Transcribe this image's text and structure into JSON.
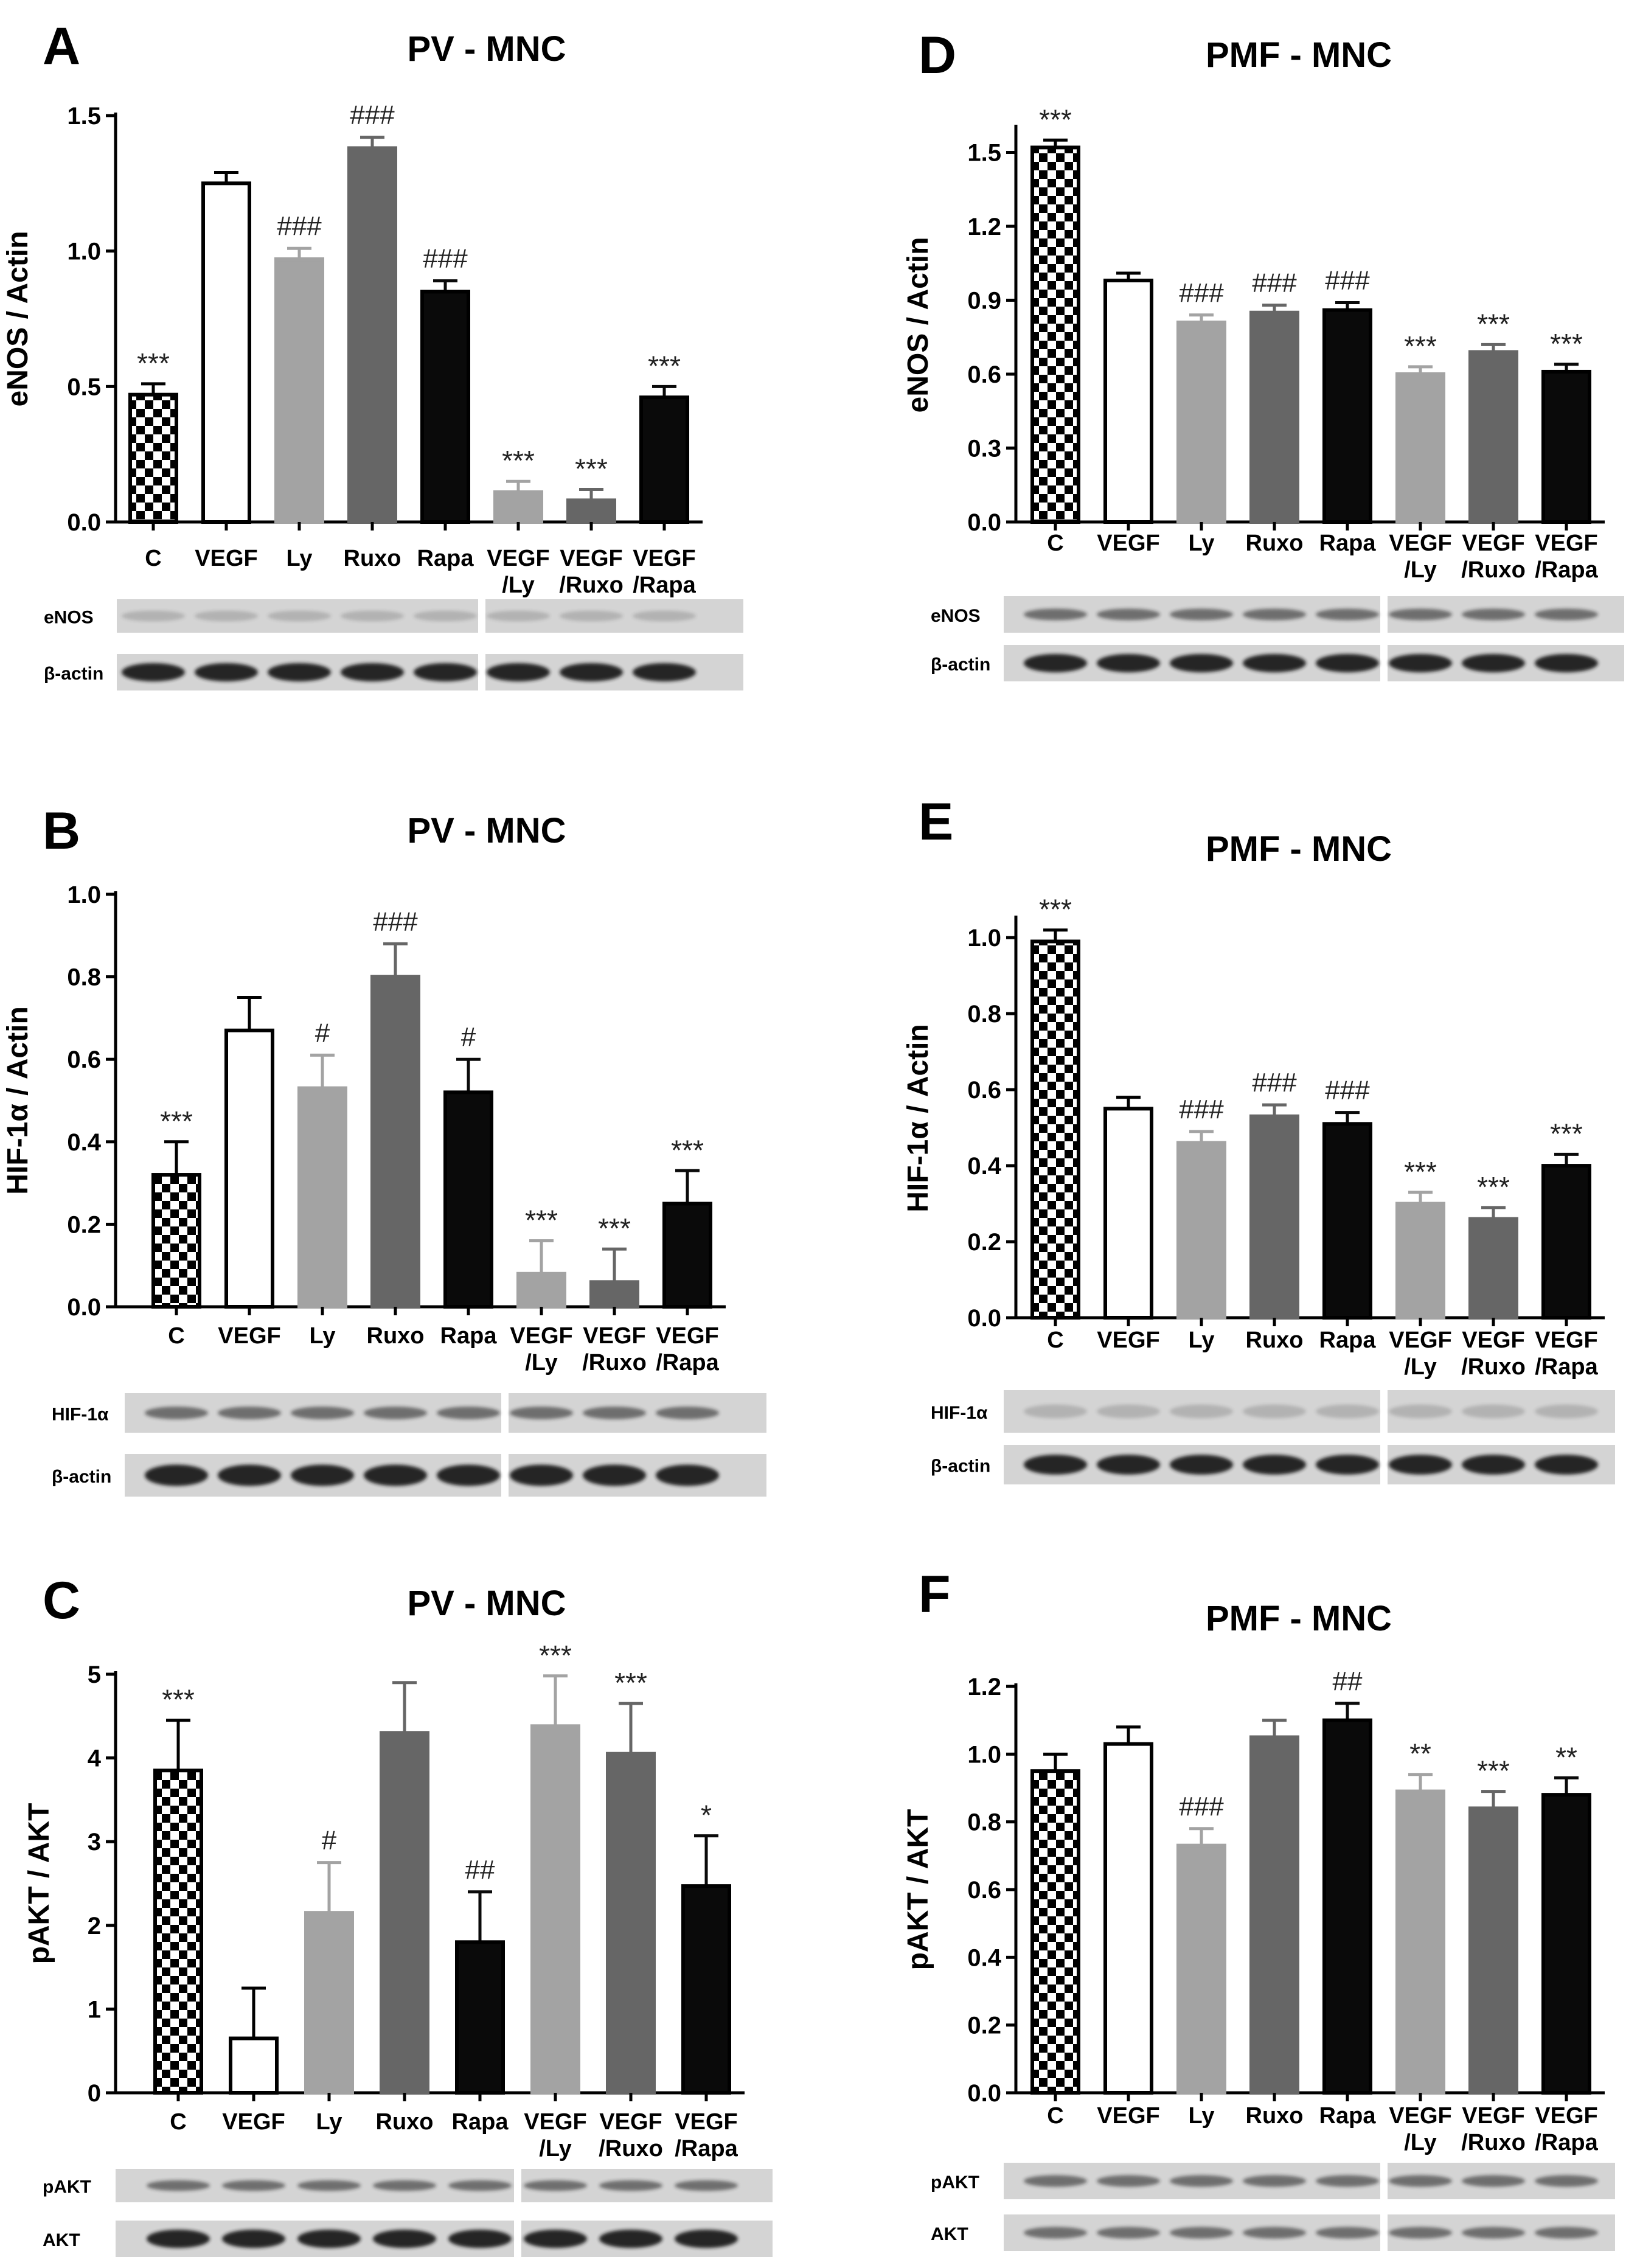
{
  "figure": {
    "categories": [
      "C",
      "VEGF",
      "Ly",
      "Ruxo",
      "Rapa",
      "VEGF|/Ly",
      "VEGF|/Ruxo",
      "VEGF|/Rapa"
    ],
    "bar_styles": [
      "checker",
      "white",
      "lightgray",
      "darkgray",
      "black",
      "lightgray",
      "darkgray",
      "black"
    ],
    "colors": {
      "axis": "#000000",
      "lightgray": "#a3a3a3",
      "darkgray": "#666666",
      "black": "#0a0a0a",
      "white": "#ffffff",
      "blot_bg": "#d4d4d4",
      "band": "#1a1a1a"
    }
  },
  "chart_data": [
    {
      "type": "bar",
      "panel_letter": "A",
      "title": "PV - MNC",
      "ylabel": "eNOS / Actin",
      "ylim": [
        0,
        1.5
      ],
      "yticks": [
        "0.0",
        "0.5",
        "1.0",
        "1.5"
      ],
      "values": [
        0.47,
        1.25,
        0.97,
        1.38,
        0.85,
        0.11,
        0.08,
        0.46
      ],
      "errors": [
        0.04,
        0.04,
        0.04,
        0.04,
        0.04,
        0.04,
        0.04,
        0.04
      ],
      "annotations": [
        "***",
        "",
        "###",
        "###",
        "###",
        "***",
        "***",
        "***"
      ],
      "blots": [
        {
          "label": "eNOS",
          "band": "faint"
        },
        {
          "label": "β-actin",
          "band": "strong"
        }
      ]
    },
    {
      "type": "bar",
      "panel_letter": "B",
      "title": "PV - MNC",
      "ylabel": "HIF-1α / Actin",
      "ylim": [
        0,
        1.0
      ],
      "yticks": [
        "0.0",
        "0.2",
        "0.4",
        "0.6",
        "0.8",
        "1.0"
      ],
      "values": [
        0.32,
        0.67,
        0.53,
        0.8,
        0.52,
        0.08,
        0.06,
        0.25
      ],
      "errors": [
        0.08,
        0.08,
        0.08,
        0.08,
        0.08,
        0.08,
        0.08,
        0.08
      ],
      "annotations": [
        "***",
        "",
        "#",
        "###",
        "#",
        "***",
        "***",
        "***"
      ],
      "blots": [
        {
          "label": "HIF-1α",
          "band": "medium"
        },
        {
          "label": "β-actin",
          "band": "strong"
        }
      ]
    },
    {
      "type": "bar",
      "panel_letter": "C",
      "title": "PV - MNC",
      "ylabel": "pAKT / AKT",
      "ylim": [
        0,
        5
      ],
      "yticks": [
        "0",
        "1",
        "2",
        "3",
        "4",
        "5"
      ],
      "values": [
        3.85,
        0.65,
        2.15,
        4.3,
        1.8,
        4.38,
        4.05,
        2.47
      ],
      "errors": [
        0.6,
        0.6,
        0.6,
        0.6,
        0.6,
        0.6,
        0.6,
        0.6
      ],
      "annotations": [
        "***",
        "",
        "#",
        "",
        "##",
        "***",
        "***",
        "*"
      ],
      "blots": [
        {
          "label": "pAKT",
          "band": "medium"
        },
        {
          "label": "AKT",
          "band": "strong"
        }
      ]
    },
    {
      "type": "bar",
      "panel_letter": "D",
      "title": "PMF - MNC",
      "ylabel": "eNOS / Actin",
      "ylim": [
        0,
        1.6
      ],
      "yticks": [
        "0.0",
        "0.3",
        "0.6",
        "0.9",
        "1.2",
        "1.5"
      ],
      "values": [
        1.52,
        0.98,
        0.81,
        0.85,
        0.86,
        0.6,
        0.69,
        0.61
      ],
      "errors": [
        0.03,
        0.03,
        0.03,
        0.03,
        0.03,
        0.03,
        0.03,
        0.03
      ],
      "annotations": [
        "***",
        "",
        "###",
        "###",
        "###",
        "***",
        "***",
        "***"
      ],
      "blots": [
        {
          "label": "eNOS",
          "band": "medium"
        },
        {
          "label": "β-actin",
          "band": "strong"
        }
      ]
    },
    {
      "type": "bar",
      "panel_letter": "E",
      "title": "PMF - MNC",
      "ylabel": "HIF-1α / Actin",
      "ylim": [
        0,
        1.05
      ],
      "yticks": [
        "0.0",
        "0.2",
        "0.4",
        "0.6",
        "0.8",
        "1.0"
      ],
      "values": [
        0.99,
        0.55,
        0.46,
        0.53,
        0.51,
        0.3,
        0.26,
        0.4
      ],
      "errors": [
        0.03,
        0.03,
        0.03,
        0.03,
        0.03,
        0.03,
        0.03,
        0.03
      ],
      "annotations": [
        "***",
        "",
        "###",
        "###",
        "###",
        "***",
        "***",
        "***"
      ],
      "blots": [
        {
          "label": "HIF-1α",
          "band": "faint"
        },
        {
          "label": "β-actin",
          "band": "strong"
        }
      ]
    },
    {
      "type": "bar",
      "panel_letter": "F",
      "title": "PMF - MNC",
      "ylabel": "pAKT / AKT",
      "ylim": [
        0,
        1.2
      ],
      "yticks": [
        "0.0",
        "0.2",
        "0.4",
        "0.6",
        "0.8",
        "1.0",
        "1.2"
      ],
      "values": [
        0.95,
        1.03,
        0.73,
        1.05,
        1.1,
        0.89,
        0.84,
        0.88
      ],
      "errors": [
        0.05,
        0.05,
        0.05,
        0.05,
        0.05,
        0.05,
        0.05,
        0.05
      ],
      "annotations": [
        "",
        "",
        "###",
        "",
        "##",
        "**",
        "***",
        "**"
      ],
      "blots": [
        {
          "label": "pAKT",
          "band": "medium"
        },
        {
          "label": "AKT",
          "band": "medium"
        }
      ]
    }
  ]
}
